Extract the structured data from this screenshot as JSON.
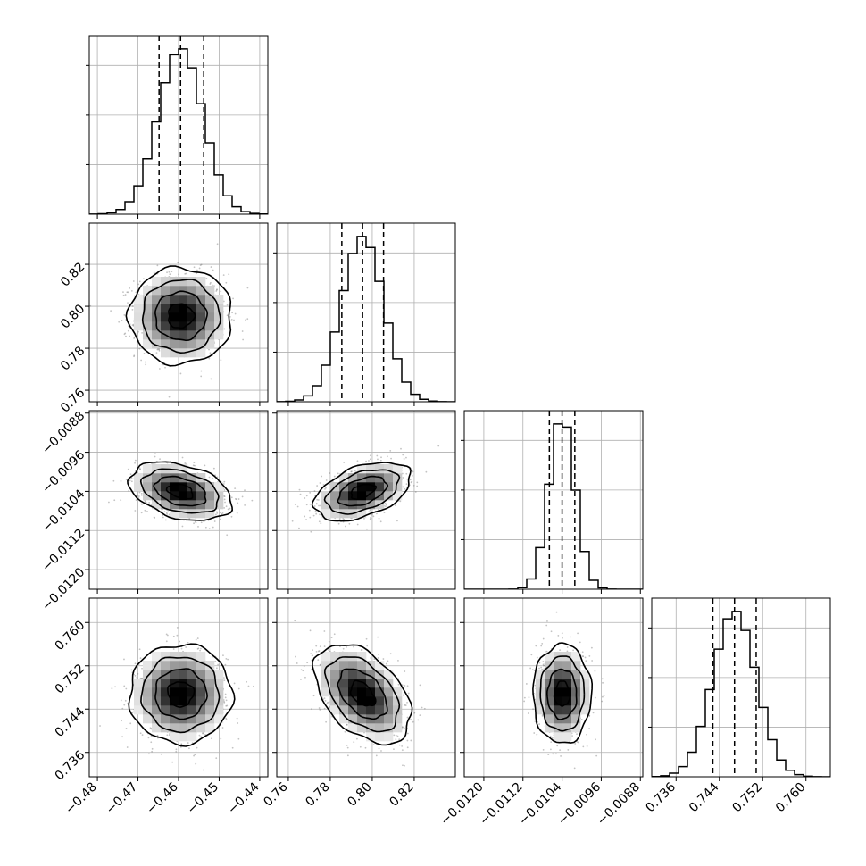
{
  "chart_data": {
    "type": "corner",
    "title": "",
    "parameters": [
      {
        "label": "",
        "range": [
          -0.482,
          -0.438
        ],
        "ticks": [
          -0.48,
          -0.47,
          -0.46,
          -0.45,
          -0.44
        ],
        "tick_labels": [
          "−0.48",
          "−0.47",
          "−0.46",
          "−0.45",
          "−0.44"
        ],
        "quantiles": [
          -0.4648,
          -0.4595,
          -0.4538
        ],
        "median": -0.4595,
        "sigma": 0.0055
      },
      {
        "label": "",
        "range": [
          0.7545,
          0.8396
        ],
        "ticks": [
          0.76,
          0.78,
          0.8,
          0.82
        ],
        "tick_labels": [
          "0.76",
          "0.78",
          "0.80",
          "0.82"
        ],
        "quantiles": [
          0.7855,
          0.7954,
          0.8054
        ],
        "median": 0.7954,
        "sigma": 0.01
      },
      {
        "label": "",
        "range": [
          -0.0124,
          -0.00875
        ],
        "ticks": [
          -0.012,
          -0.0112,
          -0.0104,
          -0.0096,
          -0.0088
        ],
        "tick_labels": [
          "−0.0120",
          "−0.0112",
          "−0.0104",
          "−0.0096",
          "−0.0088"
        ],
        "quantiles": [
          -0.01066,
          -0.0104,
          -0.01014
        ],
        "median": -0.0104,
        "sigma": 0.00026
      },
      {
        "label": "",
        "range": [
          0.7315,
          0.7645
        ],
        "ticks": [
          0.736,
          0.744,
          0.752,
          0.76
        ],
        "tick_labels": [
          "0.736",
          "0.744",
          "0.752",
          "0.760"
        ],
        "quantiles": [
          0.7428,
          0.7468,
          0.7508
        ],
        "median": 0.7468,
        "sigma": 0.004
      }
    ],
    "correlations": [
      [
        1,
        0,
        -0.35,
        0
      ],
      [
        0,
        1,
        0.45,
        -0.45
      ],
      [
        -0.35,
        0.45,
        1,
        0
      ],
      [
        0,
        -0.45,
        0,
        1
      ]
    ],
    "contour_levels_sigma": [
      0.5,
      1,
      1.5,
      2
    ],
    "grid": true,
    "hist_bins": 20
  }
}
